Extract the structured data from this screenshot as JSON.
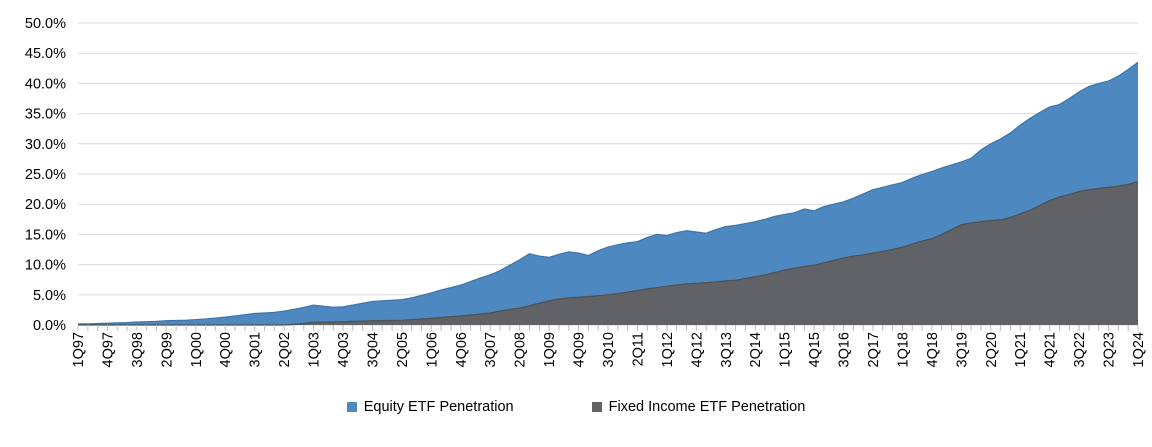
{
  "chart_data": {
    "type": "area",
    "title": "",
    "xlabel": "",
    "ylabel": "",
    "x_period": "quarterly",
    "x_start": "1Q97",
    "x_end": "1Q24",
    "x_tick_labels": [
      "1Q97",
      "4Q97",
      "3Q98",
      "2Q99",
      "1Q00",
      "4Q00",
      "3Q01",
      "2Q02",
      "1Q03",
      "4Q03",
      "3Q04",
      "2Q05",
      "1Q06",
      "4Q06",
      "3Q07",
      "2Q08",
      "1Q09",
      "4Q09",
      "3Q10",
      "2Q11",
      "1Q12",
      "4Q12",
      "3Q13",
      "2Q14",
      "1Q15",
      "4Q15",
      "3Q16",
      "2Q17",
      "1Q18",
      "4Q18",
      "3Q19",
      "2Q20",
      "1Q21",
      "4Q21",
      "3Q22",
      "2Q23",
      "1Q24"
    ],
    "x_label_every_n_quarters": 3,
    "ylim": [
      0,
      50
    ],
    "y_tick_labels": [
      "0.0%",
      "5.0%",
      "10.0%",
      "15.0%",
      "20.0%",
      "25.0%",
      "30.0%",
      "35.0%",
      "40.0%",
      "45.0%",
      "50.0%"
    ],
    "grid": "horizontal",
    "legend_position": "bottom",
    "series": [
      {
        "name": "Equity ETF Penetration",
        "color": "#4E88C1",
        "edge_color": "#3E74A8",
        "values": [
          0.2,
          0.2,
          0.25,
          0.3,
          0.35,
          0.4,
          0.5,
          0.55,
          0.6,
          0.7,
          0.75,
          0.8,
          0.9,
          1.0,
          1.15,
          1.3,
          1.5,
          1.7,
          1.9,
          2.0,
          2.1,
          2.3,
          2.6,
          2.9,
          3.3,
          3.1,
          2.95,
          3.0,
          3.3,
          3.6,
          3.9,
          4.0,
          4.1,
          4.2,
          4.5,
          4.9,
          5.3,
          5.8,
          6.2,
          6.6,
          7.2,
          7.8,
          8.3,
          9.0,
          9.9,
          10.8,
          11.8,
          11.4,
          11.2,
          11.7,
          12.1,
          11.9,
          11.5,
          12.3,
          12.9,
          13.3,
          13.6,
          13.8,
          14.5,
          15.0,
          14.8,
          15.3,
          15.6,
          15.4,
          15.2,
          15.8,
          16.3,
          16.5,
          16.8,
          17.1,
          17.5,
          18.0,
          18.3,
          18.6,
          19.2,
          18.9,
          19.6,
          20.0,
          20.4,
          21.0,
          21.7,
          22.4,
          22.8,
          23.2,
          23.6,
          24.3,
          24.9,
          25.4,
          26.0,
          26.5,
          27.0,
          27.6,
          29.0,
          30.0,
          30.8,
          31.8,
          33.1,
          34.2,
          35.2,
          36.1,
          36.5,
          37.5,
          38.6,
          39.5,
          40.0,
          40.4,
          41.2,
          42.3,
          43.5
        ]
      },
      {
        "name": "Fixed Income ETF Penetration",
        "color": "#606265",
        "edge_color": "#4E5052",
        "values": [
          0,
          0,
          0,
          0,
          0,
          0,
          0,
          0,
          0,
          0,
          0,
          0,
          0,
          0,
          0,
          0,
          0,
          0,
          0,
          0,
          0,
          0,
          0.1,
          0.25,
          0.45,
          0.5,
          0.5,
          0.55,
          0.6,
          0.65,
          0.7,
          0.72,
          0.75,
          0.8,
          0.9,
          1.0,
          1.1,
          1.25,
          1.4,
          1.5,
          1.65,
          1.8,
          2.0,
          2.3,
          2.6,
          2.8,
          3.2,
          3.6,
          4.0,
          4.3,
          4.5,
          4.6,
          4.7,
          4.85,
          5.0,
          5.2,
          5.45,
          5.7,
          6.0,
          6.2,
          6.4,
          6.6,
          6.8,
          6.9,
          7.0,
          7.15,
          7.3,
          7.4,
          7.7,
          8.0,
          8.3,
          8.7,
          9.1,
          9.4,
          9.7,
          9.9,
          10.3,
          10.7,
          11.1,
          11.4,
          11.6,
          11.9,
          12.2,
          12.5,
          12.9,
          13.4,
          13.9,
          14.3,
          15.0,
          15.8,
          16.6,
          16.9,
          17.1,
          17.3,
          17.4,
          17.8,
          18.4,
          19.0,
          19.8,
          20.6,
          21.2,
          21.6,
          22.1,
          22.4,
          22.6,
          22.8,
          23.0,
          23.3,
          23.7
        ]
      }
    ]
  },
  "colors": {
    "gridline": "#D9D9D9",
    "tick_mark": "#BFBFBF",
    "axis_text": "#000000",
    "background": "#FFFFFF"
  }
}
